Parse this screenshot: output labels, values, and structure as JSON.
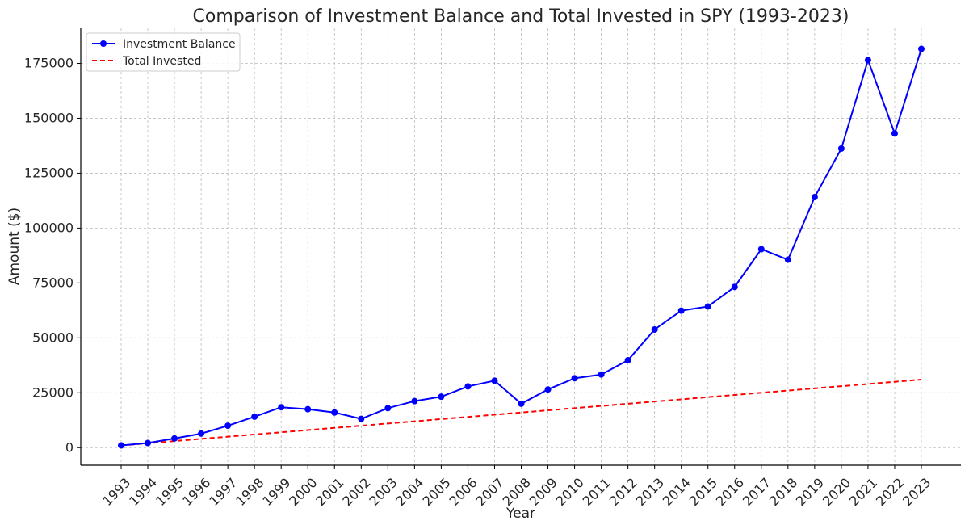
{
  "chart_data": {
    "type": "line",
    "title": "Comparison of Investment Balance and Total Invested in SPY (1993-2023)",
    "xlabel": "Year",
    "ylabel": "Amount ($)",
    "x": [
      "1993",
      "1994",
      "1995",
      "1996",
      "1997",
      "1998",
      "1999",
      "2000",
      "2001",
      "2002",
      "2003",
      "2004",
      "2005",
      "2006",
      "2007",
      "2008",
      "2009",
      "2010",
      "2011",
      "2012",
      "2013",
      "2014",
      "2015",
      "2016",
      "2017",
      "2018",
      "2019",
      "2020",
      "2021",
      "2022",
      "2023"
    ],
    "ylim": [
      -8000,
      191000
    ],
    "yticks": [
      0,
      25000,
      50000,
      75000,
      100000,
      125000,
      150000,
      175000
    ],
    "ytick_labels": [
      "0",
      "25000",
      "50000",
      "75000",
      "100000",
      "125000",
      "150000",
      "175000"
    ],
    "grid": true,
    "legend_position": "top-left",
    "series": [
      {
        "name": "Investment Balance",
        "style": "solid-with-markers",
        "color": "#0000ff",
        "values": [
          1000,
          2100,
          4200,
          6400,
          10000,
          14100,
          18400,
          17500,
          16000,
          13100,
          18000,
          21200,
          23200,
          27900,
          30500,
          20000,
          26500,
          31600,
          33300,
          39800,
          53800,
          62400,
          64300,
          73200,
          90400,
          85600,
          114100,
          136200,
          176500,
          143100,
          181600
        ]
      },
      {
        "name": "Total Invested",
        "style": "dashed",
        "color": "#ff0000",
        "values": [
          1000,
          2000,
          3000,
          4000,
          5000,
          6000,
          7000,
          8000,
          9000,
          10000,
          11000,
          12000,
          13000,
          14000,
          15000,
          16000,
          17000,
          18000,
          19000,
          20000,
          21000,
          22000,
          23000,
          24000,
          25000,
          26000,
          27000,
          28000,
          29000,
          30000,
          31000
        ]
      }
    ]
  }
}
